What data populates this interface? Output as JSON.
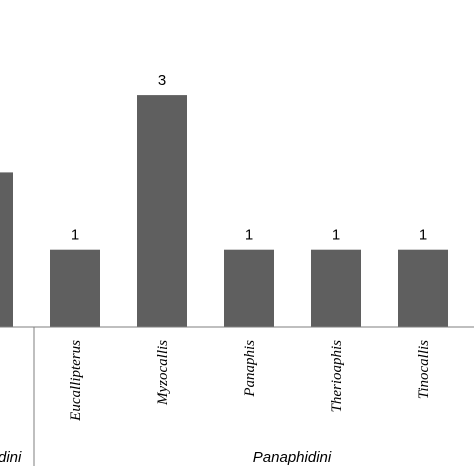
{
  "chart_data": {
    "type": "bar",
    "categories": [
      "",
      "Eucallipterus",
      "Myzocallis",
      "Panaphis",
      "Therioaphis",
      "Tinocallis"
    ],
    "values": [
      2,
      1,
      3,
      1,
      1,
      1
    ],
    "data_labels": [
      "",
      "1",
      "3",
      "1",
      "1",
      "1"
    ],
    "groups": [
      {
        "label": "dini",
        "categories": [
          ""
        ]
      },
      {
        "label": "Panaphidini",
        "categories": [
          "Eucallipterus",
          "Myzocallis",
          "Panaphis",
          "Therioaphis",
          "Tinocallis"
        ]
      }
    ],
    "ylim": [
      0,
      4.2
    ],
    "grid": false,
    "legend": "none",
    "colors": {
      "bar": "#5f5f5f",
      "axis": "#7f7f7f"
    }
  }
}
